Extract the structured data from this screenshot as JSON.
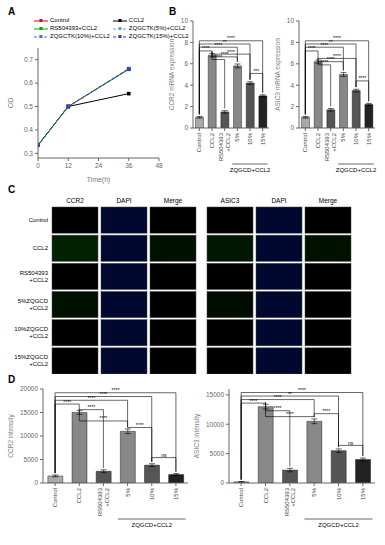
{
  "chart_data": [
    {
      "type": "line",
      "title": "A",
      "xlabel": "Time(h)",
      "ylabel": "OD",
      "x": [
        0,
        12,
        36
      ],
      "xlim": [
        0,
        48
      ],
      "xticks": [
        0,
        12,
        24,
        36,
        48
      ],
      "ylim": [
        0.28,
        0.75
      ],
      "yticks": [
        0.3,
        0.4,
        0.5,
        0.6,
        0.7
      ],
      "legend": "upper left",
      "series": [
        {
          "name": "Control",
          "color": "#e8001d",
          "marker": "square",
          "line_style": "solid",
          "values": [
            0.335,
            0.5,
            0.66
          ]
        },
        {
          "name": "CCL2",
          "color": "#000000",
          "marker": "square",
          "line_style": "solid",
          "values": [
            0.335,
            0.5,
            0.555
          ]
        },
        {
          "name": "RS504393+CCL2",
          "color": "#00aa00",
          "marker": "square",
          "line_style": "solid",
          "values": [
            0.335,
            0.5,
            0.66
          ]
        },
        {
          "name": "ZQGCTK(5%)+CCL2",
          "color": "#6699ff",
          "marker": "square",
          "line_style": "dashed",
          "values": [
            0.335,
            0.5,
            0.663
          ]
        },
        {
          "name": "ZQGCTK(10%)+CCL2",
          "color": "#4477dd",
          "marker": "square",
          "line_style": "dashed",
          "values": [
            0.335,
            0.5,
            0.661
          ]
        },
        {
          "name": "ZQGCTK(15%)+CCL2",
          "color": "#334499",
          "marker": "square",
          "line_style": "dashed",
          "values": [
            0.335,
            0.5,
            0.659
          ]
        }
      ]
    },
    {
      "type": "bar",
      "title": "B",
      "ylabel": "CCR2 mRNA expression",
      "categories": [
        "Control",
        "CCL2",
        "RS504393\n+CCL2",
        "5%",
        "10%",
        "15%"
      ],
      "values": [
        1.0,
        6.8,
        1.5,
        5.8,
        4.2,
        3.0
      ],
      "errors": [
        0.08,
        0.15,
        0.12,
        0.18,
        0.12,
        0.1
      ],
      "colors": [
        "#aaaaaa",
        "#888888",
        "#555555",
        "#888888",
        "#555555",
        "#222222"
      ],
      "ylim": [
        0,
        10
      ],
      "yticks": [
        0,
        2,
        4,
        6,
        8,
        10
      ],
      "annotations": [
        {
          "from": "Control",
          "to": "CCL2",
          "y": 7.2,
          "text": "****"
        },
        {
          "from": "Control",
          "to": "5%",
          "y": 7.55,
          "text": "****"
        },
        {
          "from": "Control",
          "to": "10%",
          "y": 7.85,
          "text": "**"
        },
        {
          "from": "Control",
          "to": "15%",
          "y": 8.15,
          "text": "****"
        },
        {
          "from": "CCL2",
          "to": "RS504393\n+CCL2",
          "y": 6.4,
          "text": "****"
        },
        {
          "from": "CCL2",
          "to": "5%",
          "y": 6.65,
          "text": "****"
        },
        {
          "from": "CCL2",
          "to": "10%",
          "y": 6.9,
          "text": "****"
        },
        {
          "from": "10%",
          "to": "15%",
          "y": 5.1,
          "text": "***"
        },
        {
          "from": "5%",
          "to": "15%",
          "text": "ZQGCD+CCL2"
        }
      ]
    },
    {
      "type": "bar",
      "ylabel": "ASIC3 mRNA expression",
      "categories": [
        "Control",
        "CCL2",
        "RS504393\n+CCL2",
        "5%",
        "10%",
        "15%"
      ],
      "values": [
        1.0,
        6.2,
        1.7,
        5.0,
        3.5,
        2.2
      ],
      "errors": [
        0.08,
        0.15,
        0.12,
        0.18,
        0.12,
        0.1
      ],
      "colors": [
        "#aaaaaa",
        "#888888",
        "#555555",
        "#888888",
        "#555555",
        "#222222"
      ],
      "ylim": [
        0,
        10
      ],
      "yticks": [
        0,
        2,
        4,
        6,
        8,
        10
      ],
      "annotations": [
        {
          "from": "Control",
          "to": "CCL2",
          "y": 7.2,
          "text": "****"
        },
        {
          "from": "Control",
          "to": "5%",
          "y": 7.55,
          "text": "****"
        },
        {
          "from": "Control",
          "to": "10%",
          "y": 7.85,
          "text": "**"
        },
        {
          "from": "Control",
          "to": "15%",
          "y": 8.15,
          "text": "****"
        },
        {
          "from": "CCL2",
          "to": "RS504393\n+CCL2",
          "y": 5.9,
          "text": "****"
        },
        {
          "from": "CCL2",
          "to": "5%",
          "y": 6.2,
          "text": "****"
        },
        {
          "from": "CCL2",
          "to": "10%",
          "y": 6.5,
          "text": "****"
        },
        {
          "from": "10%",
          "to": "15%",
          "y": 4.4,
          "text": "****"
        },
        {
          "from": "5%",
          "to": "15%",
          "text": "ZQGCD+CCL2"
        }
      ]
    },
    {
      "type": "image_grid",
      "title": "C",
      "categories": [
        "Control",
        "CCL2",
        "RS504393\n+CCL2",
        "5%ZQGCD\n+CCL2",
        "10%ZQGCD\n+CCL2",
        "15%ZQGCD\n+CCL2"
      ],
      "series": [
        {
          "name": "CCR2",
          "colors": [
            "#010101",
            "#002200",
            "#010101",
            "#001100",
            "#010101",
            "#010101"
          ]
        },
        {
          "name": "DAPI",
          "colors": [
            "#000830",
            "#000830",
            "#000830",
            "#000830",
            "#000830",
            "#000830"
          ]
        },
        {
          "name": "Merge",
          "colors": [
            "#010101",
            "#001100",
            "#010101",
            "#010101",
            "#010101",
            "#010101"
          ]
        },
        {
          "name": "ASIC3",
          "colors": [
            "#010101",
            "#001800",
            "#010101",
            "#000d00",
            "#010101",
            "#010101"
          ]
        },
        {
          "name": "DAPI",
          "colors": [
            "#000830",
            "#000830",
            "#000830",
            "#000830",
            "#000830",
            "#000830"
          ]
        },
        {
          "name": "Merge",
          "colors": [
            "#010101",
            "#001100",
            "#010101",
            "#010101",
            "#010101",
            "#010101"
          ]
        }
      ]
    },
    {
      "type": "bar",
      "title": "D",
      "ylabel": "CCR2 intensity",
      "categories": [
        "Control",
        "CCL2",
        "RS504393\n+CCL2",
        "5%",
        "10%",
        "15%"
      ],
      "values": [
        1500,
        15000,
        2500,
        11000,
        3800,
        1800
      ],
      "errors": [
        200,
        400,
        300,
        500,
        300,
        200
      ],
      "colors": [
        "#aaaaaa",
        "#888888",
        "#555555",
        "#888888",
        "#555555",
        "#222222"
      ],
      "ylim": [
        0,
        20000
      ],
      "yticks": [
        0,
        5000,
        10000,
        15000,
        20000
      ],
      "annotations": [
        {
          "from": "Control",
          "to": "CCL2",
          "y": 16800,
          "text": "****"
        },
        {
          "from": "Control",
          "to": "5%",
          "y": 17600,
          "text": "****"
        },
        {
          "from": "Control",
          "to": "10%",
          "y": 18400,
          "text": "****"
        },
        {
          "from": "Control",
          "to": "15%",
          "y": 19200,
          "text": "****"
        },
        {
          "from": "CCL2",
          "to": "RS504393\n+CCL2",
          "y": 15600,
          "text": "****"
        },
        {
          "from": "CCL2",
          "to": "5%",
          "y": 13200,
          "text": "****"
        },
        {
          "from": "5%",
          "to": "10%",
          "y": 11800,
          "text": "****"
        },
        {
          "from": "10%",
          "to": "15%",
          "y": 5400,
          "text": "ns"
        },
        {
          "from": "5%",
          "to": "15%",
          "text": "ZQGCD+CCL2"
        }
      ]
    },
    {
      "type": "bar",
      "ylabel": "ASIC3 intensity",
      "categories": [
        "Control",
        "CCL2",
        "RS504393\n+CCL2",
        "5%",
        "10%",
        "15%"
      ],
      "values": [
        200,
        13000,
        2200,
        10500,
        5500,
        4000
      ],
      "errors": [
        50,
        400,
        300,
        400,
        300,
        250
      ],
      "colors": [
        "#aaaaaa",
        "#888888",
        "#555555",
        "#888888",
        "#555555",
        "#222222"
      ],
      "ylim": [
        0,
        16000
      ],
      "yticks": [
        0,
        5000,
        10000,
        15000
      ],
      "annotations": [
        {
          "from": "Control",
          "to": "CCL2",
          "y": 13600,
          "text": "****"
        },
        {
          "from": "Control",
          "to": "5%",
          "y": 14200,
          "text": "****"
        },
        {
          "from": "Control",
          "to": "10%",
          "y": 14800,
          "text": "**"
        },
        {
          "from": "Control",
          "to": "15%",
          "y": 15400,
          "text": "****"
        },
        {
          "from": "CCL2",
          "to": "RS504393\n+CCL2",
          "y": 12300,
          "text": "****"
        },
        {
          "from": "CCL2",
          "to": "5%",
          "y": 11300,
          "text": "****"
        },
        {
          "from": "5%",
          "to": "10%",
          "y": 11800,
          "text": "****"
        },
        {
          "from": "10%",
          "to": "15%",
          "y": 6400,
          "text": "ns"
        },
        {
          "from": "5%",
          "to": "15%",
          "text": "ZQGCD+CCL2"
        }
      ]
    }
  ]
}
